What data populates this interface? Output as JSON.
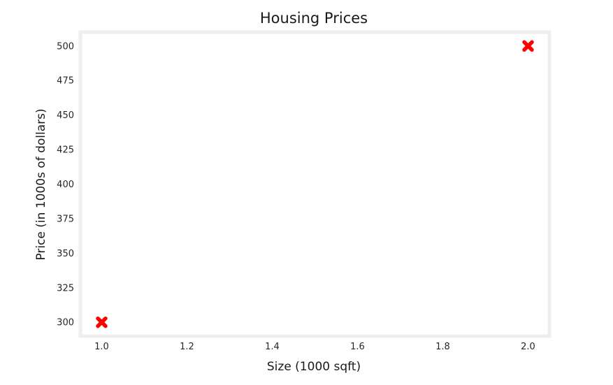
{
  "chart_data": {
    "type": "scatter",
    "title": "Housing Prices",
    "xlabel": "Size (1000 sqft)",
    "ylabel": "Price (in 1000s of dollars)",
    "x": [
      1.0,
      2.0
    ],
    "y": [
      300,
      500
    ],
    "marker": "X",
    "marker_color": "#ff0000",
    "frame_color": "#eeeeee",
    "xlim": [
      0.95,
      2.05
    ],
    "ylim": [
      290,
      510
    ],
    "xticks": [
      1.0,
      1.2,
      1.4,
      1.6,
      1.8,
      2.0
    ],
    "xtick_labels": [
      "1.0",
      "1.2",
      "1.4",
      "1.6",
      "1.8",
      "2.0"
    ],
    "yticks": [
      300,
      325,
      350,
      375,
      400,
      425,
      450,
      475,
      500
    ],
    "ytick_labels": [
      "300",
      "325",
      "350",
      "375",
      "400",
      "425",
      "450",
      "475",
      "500"
    ],
    "grid": false,
    "legend": false
  }
}
